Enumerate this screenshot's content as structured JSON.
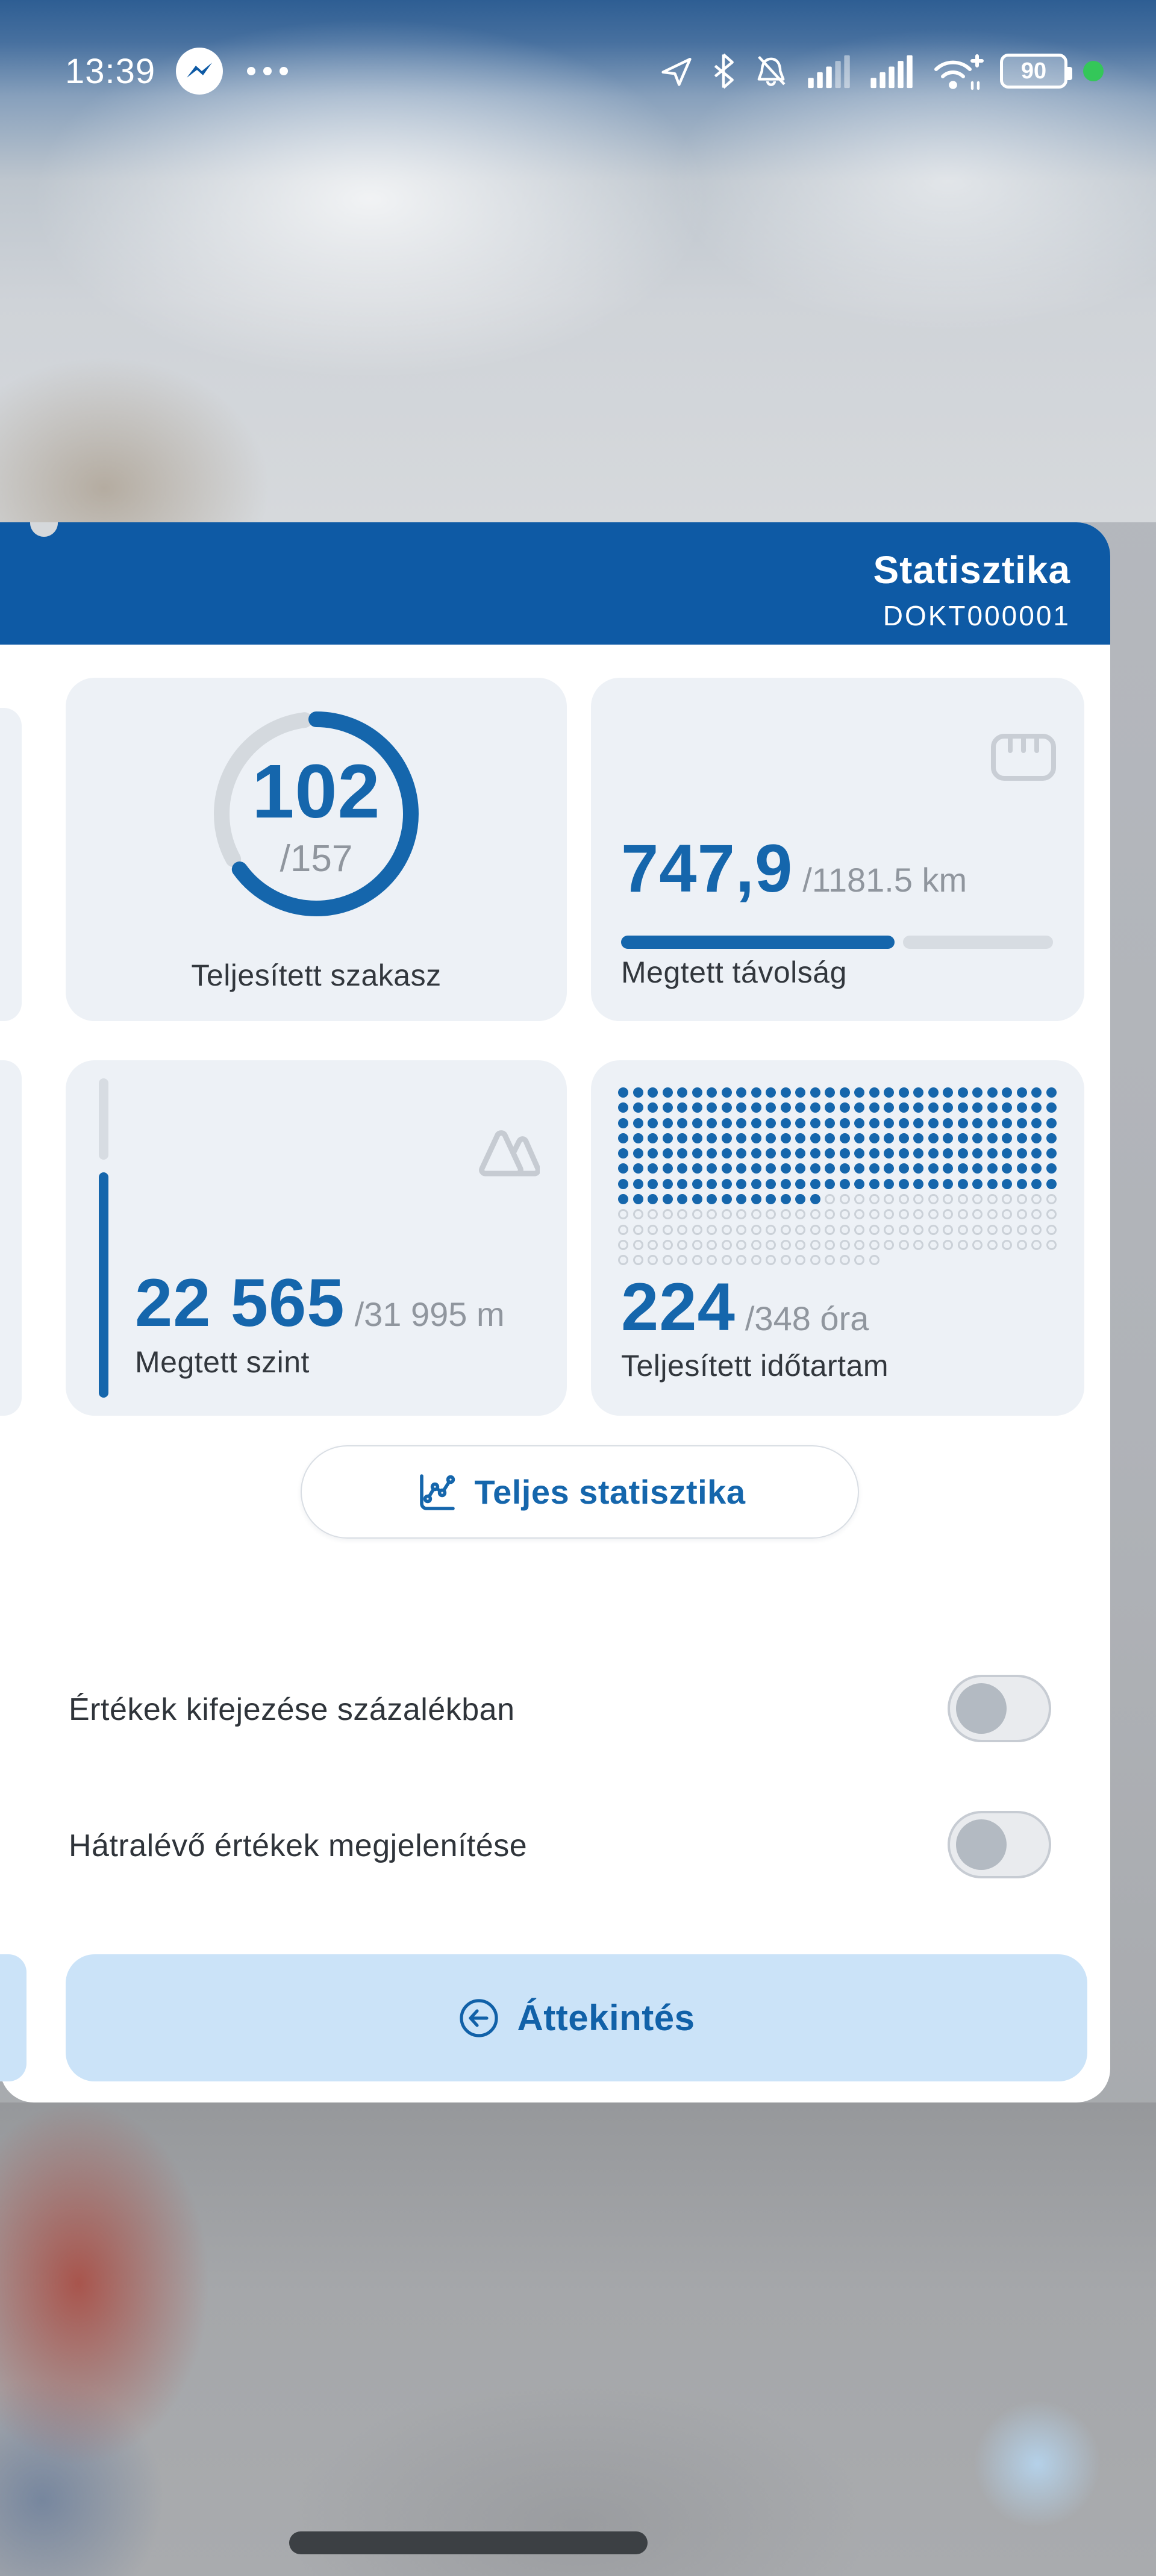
{
  "status_bar": {
    "time": "13:39",
    "battery": "90",
    "icons": [
      "messenger-icon",
      "more-dots-icon",
      "location-icon",
      "bluetooth-icon",
      "bell-muted-icon",
      "signal-partial-icon",
      "signal-full-icon",
      "wifi-plus-icon",
      "battery-icon",
      "charging-dot-icon"
    ]
  },
  "header": {
    "title": "Statisztika",
    "code": "DOKT000001"
  },
  "cards": {
    "sections": {
      "value": "102",
      "total": "/157",
      "label": "Teljesített szakasz",
      "percent": 65
    },
    "distance": {
      "value": "747,9",
      "total": "/1181.5 km",
      "label": "Megtett távolság",
      "percent": 63.3
    },
    "elevation": {
      "value": "22 565",
      "total": "/31 995 m",
      "label": "Megtett szint",
      "percent": 70.5
    },
    "duration": {
      "value": "224",
      "total": "/348 óra",
      "label": "Teljesített időtartam",
      "dots_total": 348,
      "dots_filled": 224,
      "dots_per_row": 30
    }
  },
  "buttons": {
    "full_stats": "Teljes statisztika",
    "overview": "Áttekintés"
  },
  "toggles": [
    {
      "label": "Értékek kifejezése százalékban",
      "state": "off"
    },
    {
      "label": "Hátralévő értékek megjelenítése",
      "state": "off"
    }
  ],
  "colors": {
    "accent": "#1566ac",
    "header": "#0e5aa5",
    "card_bg": "#edf1f6",
    "track": "#d7dce2",
    "muted": "#90969e",
    "label": "#32373d",
    "overview_bg": "#cbe3f8",
    "battery_green": "#34c759"
  }
}
